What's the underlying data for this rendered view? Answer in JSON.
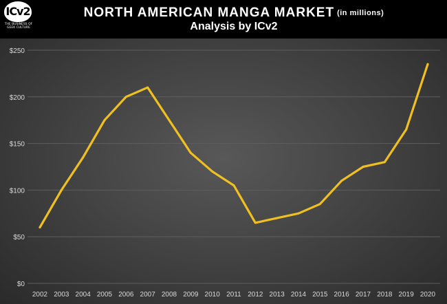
{
  "header": {
    "logo_text": "ICv2",
    "logo_tagline": "THE BUSINESS OF GEEK CULTURE",
    "title": "NORTH AMERICAN MANGA MARKET",
    "title_unit": "(in millions)",
    "subtitle": "Analysis by ICv2"
  },
  "colors": {
    "line": "#f0c020",
    "gridline": "#5e5e5e",
    "tick_text": "#d9d9d9"
  },
  "chart_data": {
    "type": "line",
    "title": "NORTH AMERICAN MANGA MARKET",
    "subtitle": "Analysis by ICv2",
    "xlabel": "",
    "ylabel": "",
    "categories": [
      "2002",
      "2003",
      "2004",
      "2005",
      "2006",
      "2007",
      "2008",
      "2009",
      "2010",
      "2011",
      "2012",
      "2013",
      "2014",
      "2015",
      "2016",
      "2017",
      "2018",
      "2019",
      "2020"
    ],
    "series": [
      {
        "values": [
          60,
          100,
          135,
          175,
          200,
          210,
          175,
          140,
          120,
          105,
          65,
          70,
          75,
          85,
          110,
          125,
          130,
          165,
          235
        ]
      }
    ],
    "ylim": [
      0,
      250
    ],
    "yticks": [
      0,
      50,
      100,
      150,
      200,
      250
    ],
    "ytick_labels": [
      "$0",
      "$50",
      "$100",
      "$150",
      "$200",
      "$250"
    ],
    "grid": true,
    "legend": "none"
  }
}
